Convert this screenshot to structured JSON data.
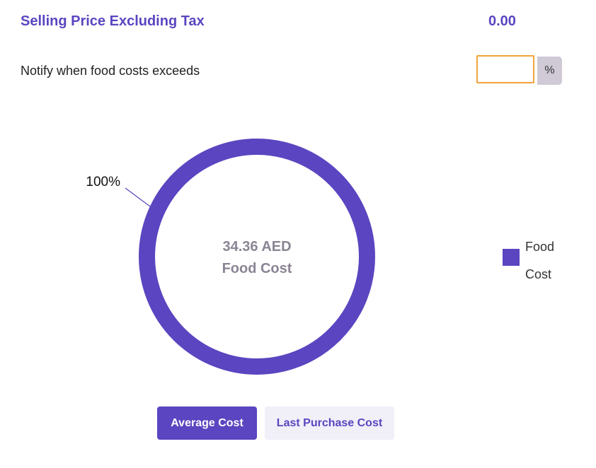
{
  "selling_price": {
    "label": "Selling Price Excluding Tax",
    "value": "0.00"
  },
  "notify": {
    "label": "Notify when food costs exceeds",
    "input_value": "",
    "unit": "%"
  },
  "chart_data": {
    "type": "pie",
    "variant": "donut",
    "categories": [
      "Food Cost"
    ],
    "values": [
      100
    ],
    "value_labels": [
      "100%"
    ],
    "center_text": [
      "34.36 AED",
      "Food Cost"
    ],
    "legend": {
      "placement": "right",
      "entries": [
        "Food",
        "Cost"
      ]
    },
    "colors": [
      "#5b45c0"
    ]
  },
  "buttons": {
    "average_cost": "Average Cost",
    "last_purchase_cost": "Last Purchase Cost"
  },
  "colors": {
    "accent": "#5b45c0",
    "input_focus_border": "#f2a33a",
    "center_text": "#8a8494"
  }
}
